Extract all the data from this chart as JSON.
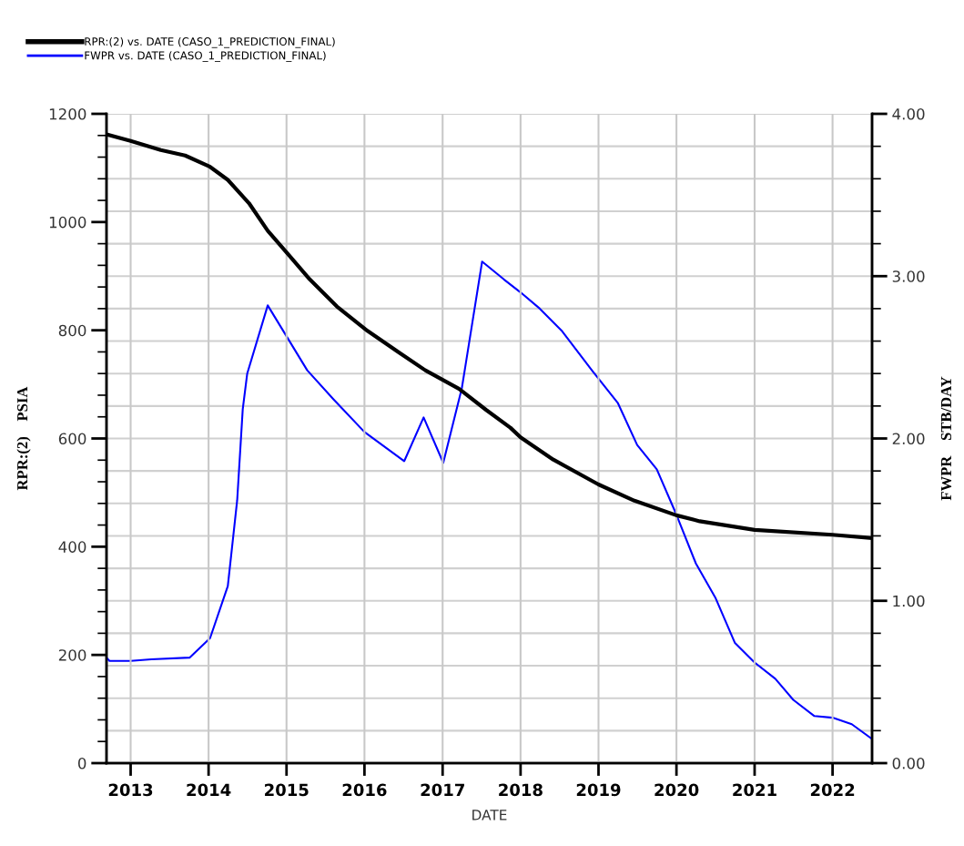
{
  "chart_data": {
    "type": "line",
    "xlabel": "DATE",
    "ylabel": "RPR:(2)    PSIA",
    "y2label": "FWPR    STB/DAY",
    "xlim": [
      "2012-09-10",
      "2022-07-05"
    ],
    "xticks": [
      {
        "value": "2013-01-01",
        "label": "2013"
      },
      {
        "value": "2014-01-01",
        "label": "2014"
      },
      {
        "value": "2015-01-01",
        "label": "2015"
      },
      {
        "value": "2016-01-01",
        "label": "2016"
      },
      {
        "value": "2017-01-01",
        "label": "2017"
      },
      {
        "value": "2018-01-01",
        "label": "2018"
      },
      {
        "value": "2019-01-01",
        "label": "2019"
      },
      {
        "value": "2020-01-01",
        "label": "2020"
      },
      {
        "value": "2021-01-01",
        "label": "2021"
      },
      {
        "value": "2022-01-01",
        "label": "2022"
      }
    ],
    "ylim": [
      0,
      1200
    ],
    "yticks": [
      0,
      {
        "value": 40,
        "label": null
      },
      {
        "value": 80,
        "label": null
      },
      {
        "value": 120,
        "label": null
      },
      {
        "value": 160,
        "label": null
      },
      200,
      {
        "value": 240,
        "label": null
      },
      {
        "value": 280,
        "label": null
      },
      {
        "value": 320,
        "label": null
      },
      {
        "value": 360,
        "label": null
      },
      400,
      {
        "value": 440,
        "label": null
      },
      {
        "value": 480,
        "label": null
      },
      {
        "value": 520,
        "label": null
      },
      {
        "value": 560,
        "label": null
      },
      600,
      {
        "value": 640,
        "label": null
      },
      {
        "value": 680,
        "label": null
      },
      {
        "value": 720,
        "label": null
      },
      {
        "value": 760,
        "label": null
      },
      800,
      {
        "value": 840,
        "label": null
      },
      {
        "value": 880,
        "label": null
      },
      {
        "value": 920,
        "label": null
      },
      {
        "value": 960,
        "label": null
      },
      1000,
      {
        "value": 1040,
        "label": null
      },
      {
        "value": 1080,
        "label": null
      },
      {
        "value": 1120,
        "label": null
      },
      {
        "value": 1160,
        "label": null
      },
      1200
    ],
    "y2lim": [
      0,
      4
    ],
    "y2ticks": [
      {
        "value": 0,
        "label": "0.00"
      },
      {
        "value": 0.2,
        "label": null
      },
      {
        "value": 0.4,
        "label": null
      },
      {
        "value": 0.6,
        "label": null
      },
      {
        "value": 0.8,
        "label": null
      },
      {
        "value": 1,
        "label": "1.00"
      },
      {
        "value": 1.2,
        "label": null
      },
      {
        "value": 1.4,
        "label": null
      },
      {
        "value": 1.6,
        "label": null
      },
      {
        "value": 1.8,
        "label": null
      },
      {
        "value": 2,
        "label": "2.00"
      },
      {
        "value": 2.2,
        "label": null
      },
      {
        "value": 2.4,
        "label": null
      },
      {
        "value": 2.6,
        "label": null
      },
      {
        "value": 2.8,
        "label": null
      },
      {
        "value": 3,
        "label": "3.00"
      },
      {
        "value": 3.2,
        "label": null
      },
      {
        "value": 3.4,
        "label": null
      },
      {
        "value": 3.6,
        "label": null
      },
      {
        "value": 3.8,
        "label": null
      },
      {
        "value": 4,
        "label": "4.00"
      }
    ],
    "grid": true,
    "legend": "top left",
    "marker": "none",
    "line_style": "solid",
    "series": [
      {
        "name": "RPR:(2) vs. DATE (CASO_1_PREDICTION_FINAL)",
        "color": "#000000",
        "x": [
          "2012-09-10",
          "2013-01-01",
          "2013-05-22",
          "2013-09-13",
          "2014-01-08",
          "2014-04-01",
          "2014-07-09",
          "2014-10-05",
          "2015-01-12",
          "2015-04-20",
          "2015-08-25",
          "2016-01-15",
          "2016-06-07",
          "2016-10-12",
          "2017-03-18",
          "2017-07-23",
          "2017-11-14",
          "2018-01-01",
          "2018-06-03",
          "2019-01-01",
          "2019-06-18",
          "2020-01-01",
          "2020-04-19",
          "2021-01-01",
          "2022-01-01",
          "2022-07-04"
        ],
        "values": [
          1162,
          1150,
          1133,
          1123,
          1102,
          1078,
          1035,
          984,
          939,
          894,
          844,
          799,
          760,
          726,
          692,
          653,
          620,
          602,
          561,
          515,
          485,
          458,
          447,
          431,
          422,
          416
        ]
      },
      {
        "name": "FWPR vs. DATE (CASO_1_PREDICTION_FINAL)",
        "color": "#0000ff",
        "axis": "y2",
        "x": [
          "2012-09-10",
          "2012-09-24",
          "2013-01-01",
          "2013-04-08",
          "2013-10-04",
          "2014-01-08",
          "2014-04-01",
          "2014-05-15",
          "2014-06-10",
          "2014-07-01",
          "2014-10-05",
          "2015-04-08",
          "2015-08-10",
          "2016-01-01",
          "2016-07-05",
          "2016-10-04",
          "2017-01-04",
          "2017-04-01",
          "2017-07-05",
          "2017-10-15",
          "2018-01-01",
          "2018-04-01",
          "2018-07-15",
          "2018-12-01",
          "2019-04-01",
          "2019-07-01",
          "2019-10-01",
          "2020-01-01",
          "2020-04-01",
          "2020-07-01",
          "2020-10-01",
          "2021-01-01",
          "2021-04-08",
          "2021-07-01",
          "2021-10-08",
          "2022-01-01",
          "2022-04-01",
          "2022-07-04"
        ],
        "values": [
          0.65,
          0.63,
          0.63,
          0.64,
          0.65,
          0.77,
          1.09,
          1.62,
          2.18,
          2.4,
          2.82,
          2.42,
          2.24,
          2.04,
          1.86,
          2.13,
          1.85,
          2.31,
          3.09,
          2.98,
          2.9,
          2.8,
          2.66,
          2.42,
          2.22,
          1.96,
          1.81,
          1.53,
          1.23,
          1.02,
          0.74,
          0.62,
          0.52,
          0.39,
          0.29,
          0.28,
          0.24,
          0.15
        ]
      }
    ]
  }
}
